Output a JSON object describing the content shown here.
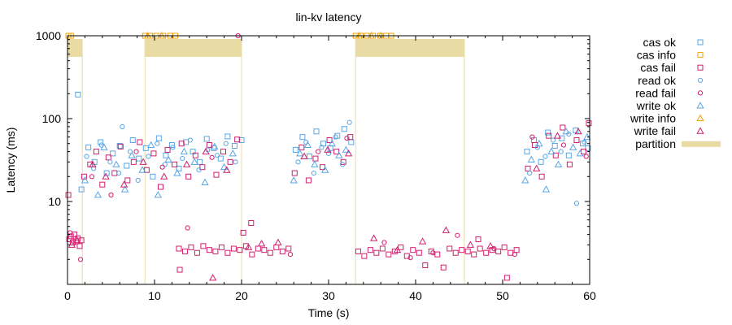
{
  "chart_data": {
    "type": "scatter",
    "title": "lin-kv latency",
    "xlabel": "Time (s)",
    "ylabel": "Latency (ms)",
    "x_range": [
      0,
      60
    ],
    "y_range": [
      1,
      1000
    ],
    "y_scale": "log",
    "x_ticks": [
      0,
      10,
      20,
      30,
      40,
      50,
      60
    ],
    "y_ticks": [
      10,
      100,
      1000
    ],
    "grid": false,
    "legend_position": "right",
    "colors": {
      "cas_ok": "#5aa6e6",
      "cas_info": "#f0a000",
      "cas_fail": "#d0206e",
      "read_ok": "#5aa6e6",
      "read_fail": "#d0206e",
      "write_ok": "#5aa6e6",
      "write_info": "#f0a000",
      "write_fail": "#d0206e",
      "partition": "#e8dca4"
    },
    "legend": [
      {
        "key": "cas_ok",
        "label": "cas ok",
        "marker": "square",
        "color": "#5aa6e6"
      },
      {
        "key": "cas_info",
        "label": "cas info",
        "marker": "square",
        "color": "#f0a000"
      },
      {
        "key": "cas_fail",
        "label": "cas fail",
        "marker": "square",
        "color": "#d0206e"
      },
      {
        "key": "read_ok",
        "label": "read ok",
        "marker": "circle",
        "color": "#5aa6e6"
      },
      {
        "key": "read_fail",
        "label": "read fail",
        "marker": "circle",
        "color": "#d0206e"
      },
      {
        "key": "write_ok",
        "label": "write ok",
        "marker": "triangle",
        "color": "#5aa6e6"
      },
      {
        "key": "write_info",
        "label": "write info",
        "marker": "triangle",
        "color": "#f0a000"
      },
      {
        "key": "write_fail",
        "label": "write fail",
        "marker": "triangle",
        "color": "#d0206e"
      },
      {
        "key": "partition",
        "label": "partition",
        "marker": "bar",
        "color": "#e8dca4"
      }
    ],
    "partitions": [
      {
        "start": 0.0,
        "end": 1.7
      },
      {
        "start": 8.9,
        "end": 20.0
      },
      {
        "start": 33.1,
        "end": 45.6
      }
    ],
    "series": [
      {
        "name": "cas ok",
        "marker": "square",
        "color": "#5aa6e6",
        "points": [
          [
            1.2,
            195
          ],
          [
            1.6,
            14
          ],
          [
            2.4,
            45
          ],
          [
            3.1,
            30
          ],
          [
            3.8,
            52
          ],
          [
            4.5,
            22
          ],
          [
            5.2,
            38
          ],
          [
            6.0,
            47
          ],
          [
            6.8,
            27
          ],
          [
            7.5,
            55
          ],
          [
            8.2,
            33
          ],
          [
            9.0,
            44
          ],
          [
            9.8,
            20
          ],
          [
            10.5,
            58
          ],
          [
            11.3,
            36
          ],
          [
            12.0,
            48
          ],
          [
            12.8,
            25
          ],
          [
            13.6,
            52
          ],
          [
            14.4,
            40
          ],
          [
            15.2,
            30
          ],
          [
            16.0,
            57
          ],
          [
            16.8,
            44
          ],
          [
            17.6,
            33
          ],
          [
            18.4,
            61
          ],
          [
            19.2,
            47
          ],
          [
            20.0,
            55
          ],
          [
            26.2,
            42
          ],
          [
            27.0,
            60
          ],
          [
            27.8,
            35
          ],
          [
            28.6,
            70
          ],
          [
            29.4,
            50
          ],
          [
            30.2,
            44
          ],
          [
            31.0,
            62
          ],
          [
            31.8,
            75
          ],
          [
            32.6,
            52
          ],
          [
            52.8,
            40
          ],
          [
            53.6,
            55
          ],
          [
            54.4,
            30
          ],
          [
            55.2,
            68
          ],
          [
            56.0,
            47
          ],
          [
            56.8,
            58
          ],
          [
            57.6,
            36
          ],
          [
            58.4,
            72
          ],
          [
            59.2,
            50
          ],
          [
            59.8,
            44
          ]
        ]
      },
      {
        "name": "cas info",
        "marker": "square",
        "color": "#f0a000",
        "points": [
          [
            0.1,
            1000
          ],
          [
            0.4,
            1000
          ],
          [
            8.9,
            1000
          ],
          [
            9.5,
            1000
          ],
          [
            10.2,
            1000
          ],
          [
            11.0,
            1000
          ],
          [
            11.8,
            1000
          ],
          [
            12.4,
            1000
          ],
          [
            33.1,
            1000
          ],
          [
            33.7,
            1000
          ],
          [
            34.4,
            1000
          ],
          [
            35.1,
            1000
          ],
          [
            35.9,
            1000
          ],
          [
            36.6,
            1000
          ],
          [
            37.2,
            1000
          ]
        ]
      },
      {
        "name": "cas fail",
        "marker": "square",
        "color": "#d0206e",
        "points": [
          [
            0.2,
            3.5
          ],
          [
            0.4,
            3.8
          ],
          [
            0.6,
            3.2
          ],
          [
            0.8,
            4.0
          ],
          [
            1.0,
            3.3
          ],
          [
            1.2,
            3.6
          ],
          [
            1.4,
            2.9
          ],
          [
            1.6,
            3.4
          ],
          [
            0.1,
            12
          ],
          [
            1.9,
            20
          ],
          [
            2.6,
            28
          ],
          [
            3.3,
            40
          ],
          [
            4.0,
            16
          ],
          [
            4.7,
            34
          ],
          [
            5.4,
            22
          ],
          [
            6.1,
            46
          ],
          [
            6.9,
            18
          ],
          [
            7.6,
            30
          ],
          [
            8.3,
            52
          ],
          [
            9.1,
            24
          ],
          [
            9.9,
            38
          ],
          [
            10.7,
            15
          ],
          [
            11.5,
            42
          ],
          [
            12.3,
            28
          ],
          [
            13.1,
            50
          ],
          [
            13.9,
            20
          ],
          [
            14.7,
            36
          ],
          [
            15.5,
            26
          ],
          [
            16.3,
            48
          ],
          [
            17.1,
            21
          ],
          [
            17.9,
            40
          ],
          [
            18.7,
            30
          ],
          [
            19.5,
            56
          ],
          [
            12.8,
            2.7
          ],
          [
            13.5,
            2.5
          ],
          [
            14.2,
            2.8
          ],
          [
            14.9,
            2.4
          ],
          [
            15.6,
            2.9
          ],
          [
            16.3,
            2.6
          ],
          [
            17.0,
            2.5
          ],
          [
            17.7,
            2.8
          ],
          [
            18.4,
            2.4
          ],
          [
            19.1,
            2.7
          ],
          [
            19.8,
            2.6
          ],
          [
            20.5,
            2.9
          ],
          [
            21.2,
            2.3
          ],
          [
            21.9,
            2.7
          ],
          [
            22.6,
            2.6
          ],
          [
            23.3,
            2.4
          ],
          [
            24.0,
            2.8
          ],
          [
            24.7,
            2.5
          ],
          [
            25.4,
            2.7
          ],
          [
            20.2,
            4.2
          ],
          [
            21.1,
            5.5
          ],
          [
            12.9,
            1.5
          ],
          [
            26.1,
            22
          ],
          [
            26.9,
            45
          ],
          [
            27.7,
            18
          ],
          [
            28.5,
            33
          ],
          [
            29.3,
            26
          ],
          [
            30.1,
            55
          ],
          [
            30.9,
            40
          ],
          [
            31.7,
            30
          ],
          [
            32.5,
            60
          ],
          [
            33.4,
            2.5
          ],
          [
            34.1,
            2.2
          ],
          [
            34.8,
            2.6
          ],
          [
            35.5,
            2.4
          ],
          [
            36.2,
            2.7
          ],
          [
            36.9,
            2.3
          ],
          [
            37.6,
            2.5
          ],
          [
            38.3,
            2.8
          ],
          [
            39.0,
            2.2
          ],
          [
            39.7,
            2.6
          ],
          [
            40.4,
            2.4
          ],
          [
            41.1,
            1.7
          ],
          [
            41.8,
            2.5
          ],
          [
            42.5,
            2.3
          ],
          [
            43.2,
            1.6
          ],
          [
            43.9,
            2.7
          ],
          [
            44.6,
            2.4
          ],
          [
            45.3,
            2.6
          ],
          [
            46.0,
            2.5
          ],
          [
            46.7,
            2.3
          ],
          [
            47.4,
            2.7
          ],
          [
            48.1,
            2.4
          ],
          [
            48.8,
            2.6
          ],
          [
            49.5,
            2.5
          ],
          [
            50.2,
            2.8
          ],
          [
            50.9,
            2.4
          ],
          [
            51.6,
            2.6
          ],
          [
            47.2,
            3.5
          ],
          [
            50.5,
            1.2
          ],
          [
            52.9,
            25
          ],
          [
            53.7,
            48
          ],
          [
            54.5,
            20
          ],
          [
            55.3,
            62
          ],
          [
            56.1,
            36
          ],
          [
            56.9,
            78
          ],
          [
            57.7,
            28
          ],
          [
            58.5,
            55
          ],
          [
            59.3,
            40
          ],
          [
            59.9,
            88
          ]
        ]
      },
      {
        "name": "read ok",
        "marker": "circle",
        "color": "#5aa6e6",
        "points": [
          [
            2.2,
            35
          ],
          [
            3.0,
            25
          ],
          [
            3.9,
            48
          ],
          [
            4.9,
            30
          ],
          [
            5.9,
            22
          ],
          [
            6.3,
            80
          ],
          [
            7.2,
            40
          ],
          [
            8.1,
            18
          ],
          [
            9.3,
            35
          ],
          [
            10.3,
            50
          ],
          [
            11.2,
            28
          ],
          [
            12.1,
            45
          ],
          [
            13.2,
            33
          ],
          [
            14.1,
            55
          ],
          [
            15.1,
            24
          ],
          [
            16.1,
            42
          ],
          [
            17.2,
            36
          ],
          [
            18.2,
            50
          ],
          [
            19.3,
            30
          ],
          [
            26.5,
            30
          ],
          [
            27.4,
            52
          ],
          [
            28.3,
            22
          ],
          [
            29.2,
            45
          ],
          [
            30.0,
            38
          ],
          [
            30.8,
            60
          ],
          [
            31.6,
            28
          ],
          [
            32.4,
            90
          ],
          [
            53.1,
            22
          ],
          [
            54.0,
            45
          ],
          [
            54.9,
            35
          ],
          [
            55.8,
            55
          ],
          [
            56.7,
            40
          ],
          [
            57.6,
            65
          ],
          [
            58.5,
            9.5
          ],
          [
            59.4,
            52
          ]
        ]
      },
      {
        "name": "read fail",
        "marker": "circle",
        "color": "#d0206e",
        "points": [
          [
            0.3,
            4.2
          ],
          [
            1.5,
            2.0
          ],
          [
            2.8,
            20
          ],
          [
            5.0,
            12
          ],
          [
            7.9,
            40
          ],
          [
            10.9,
            26
          ],
          [
            13.8,
            4.8
          ],
          [
            16.6,
            34
          ],
          [
            19.6,
            1000
          ],
          [
            25.6,
            2.3
          ],
          [
            28.8,
            40
          ],
          [
            32.1,
            58
          ],
          [
            36.4,
            3.2
          ],
          [
            39.4,
            2.1
          ],
          [
            42.0,
            2.4
          ],
          [
            44.8,
            3.9
          ],
          [
            49.0,
            2.7
          ],
          [
            51.4,
            2.3
          ],
          [
            53.4,
            60
          ],
          [
            57.0,
            48
          ],
          [
            59.6,
            35
          ]
        ]
      },
      {
        "name": "write ok",
        "marker": "triangle",
        "color": "#5aa6e6",
        "points": [
          [
            2.0,
            18
          ],
          [
            3.5,
            12
          ],
          [
            4.2,
            45
          ],
          [
            5.6,
            28
          ],
          [
            6.6,
            14
          ],
          [
            7.4,
            36
          ],
          [
            8.6,
            24
          ],
          [
            9.6,
            48
          ],
          [
            10.4,
            12
          ],
          [
            11.6,
            32
          ],
          [
            12.6,
            22
          ],
          [
            13.4,
            40
          ],
          [
            14.6,
            30
          ],
          [
            15.8,
            17
          ],
          [
            16.9,
            46
          ],
          [
            18.0,
            26
          ],
          [
            19.0,
            38
          ],
          [
            26.0,
            18
          ],
          [
            26.7,
            38
          ],
          [
            27.6,
            48
          ],
          [
            28.4,
            28
          ],
          [
            29.6,
            24
          ],
          [
            30.4,
            50
          ],
          [
            31.2,
            36
          ],
          [
            32.0,
            42
          ],
          [
            52.6,
            18
          ],
          [
            53.3,
            32
          ],
          [
            54.2,
            50
          ],
          [
            55.0,
            14
          ],
          [
            55.6,
            40
          ],
          [
            56.4,
            28
          ],
          [
            57.3,
            70
          ],
          [
            58.1,
            45
          ],
          [
            58.9,
            38
          ],
          [
            59.7,
            60
          ]
        ]
      },
      {
        "name": "write info",
        "marker": "triangle",
        "color": "#f0a000",
        "points": [
          [
            9.2,
            1000
          ],
          [
            10.8,
            1000
          ],
          [
            33.5,
            1000
          ],
          [
            34.9,
            1000
          ],
          [
            36.0,
            1000
          ]
        ]
      },
      {
        "name": "write fail",
        "marker": "triangle",
        "color": "#d0206e",
        "points": [
          [
            0.5,
            3.0
          ],
          [
            1.1,
            3.4
          ],
          [
            2.9,
            28
          ],
          [
            4.4,
            20
          ],
          [
            6.5,
            16
          ],
          [
            8.7,
            30
          ],
          [
            11.1,
            20
          ],
          [
            13.7,
            28
          ],
          [
            15.9,
            40
          ],
          [
            18.3,
            24
          ],
          [
            16.7,
            1.2
          ],
          [
            20.8,
            2.8
          ],
          [
            22.3,
            3.1
          ],
          [
            24.2,
            3.2
          ],
          [
            27.2,
            35
          ],
          [
            29.9,
            42
          ],
          [
            32.3,
            38
          ],
          [
            35.2,
            3.6
          ],
          [
            37.9,
            2.6
          ],
          [
            40.8,
            3.3
          ],
          [
            43.5,
            4.5
          ],
          [
            46.3,
            3.0
          ],
          [
            48.6,
            2.9
          ],
          [
            53.9,
            25
          ],
          [
            56.3,
            62
          ],
          [
            58.7,
            70
          ]
        ]
      }
    ]
  }
}
